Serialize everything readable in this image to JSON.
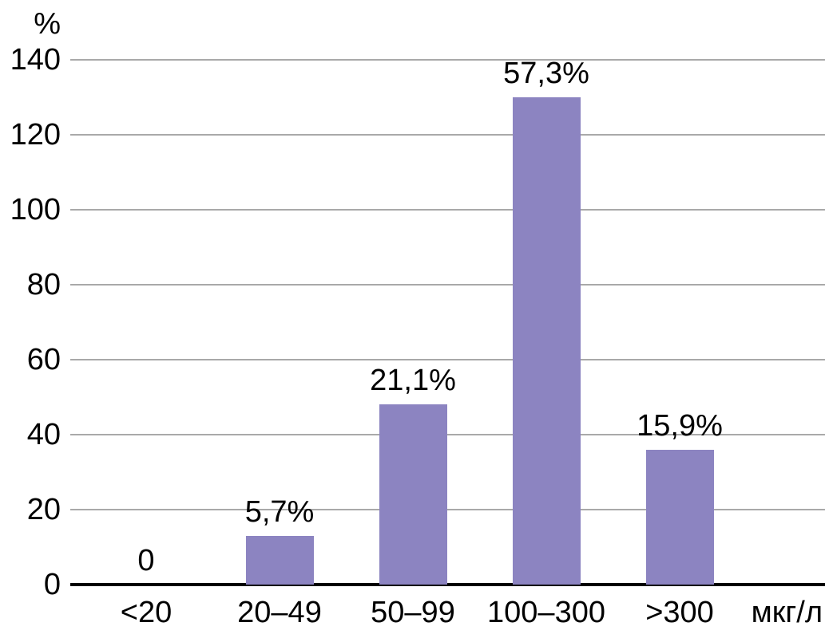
{
  "chart_data": {
    "type": "bar",
    "title": "",
    "y_axis_label": "%",
    "x_axis_unit_label": "мкг/л",
    "categories": [
      "<20",
      "20–49",
      "50–99",
      "100–300",
      ">300"
    ],
    "values": [
      0,
      13,
      48,
      130,
      36
    ],
    "bar_labels": [
      "0",
      "5,7%",
      "21,1%",
      "57,3%",
      "15,9%"
    ],
    "percent_values": [
      0,
      5.7,
      21.1,
      57.3,
      15.9
    ],
    "y_ticks": [
      0,
      20,
      40,
      60,
      80,
      100,
      120,
      140
    ],
    "ylim": [
      0,
      140
    ],
    "grid": true,
    "legend": false,
    "colors": {
      "bar": "#8c84c1",
      "gridline": "#a9a9a9",
      "axis": "#000000",
      "text": "#000000",
      "background": "#ffffff"
    }
  }
}
